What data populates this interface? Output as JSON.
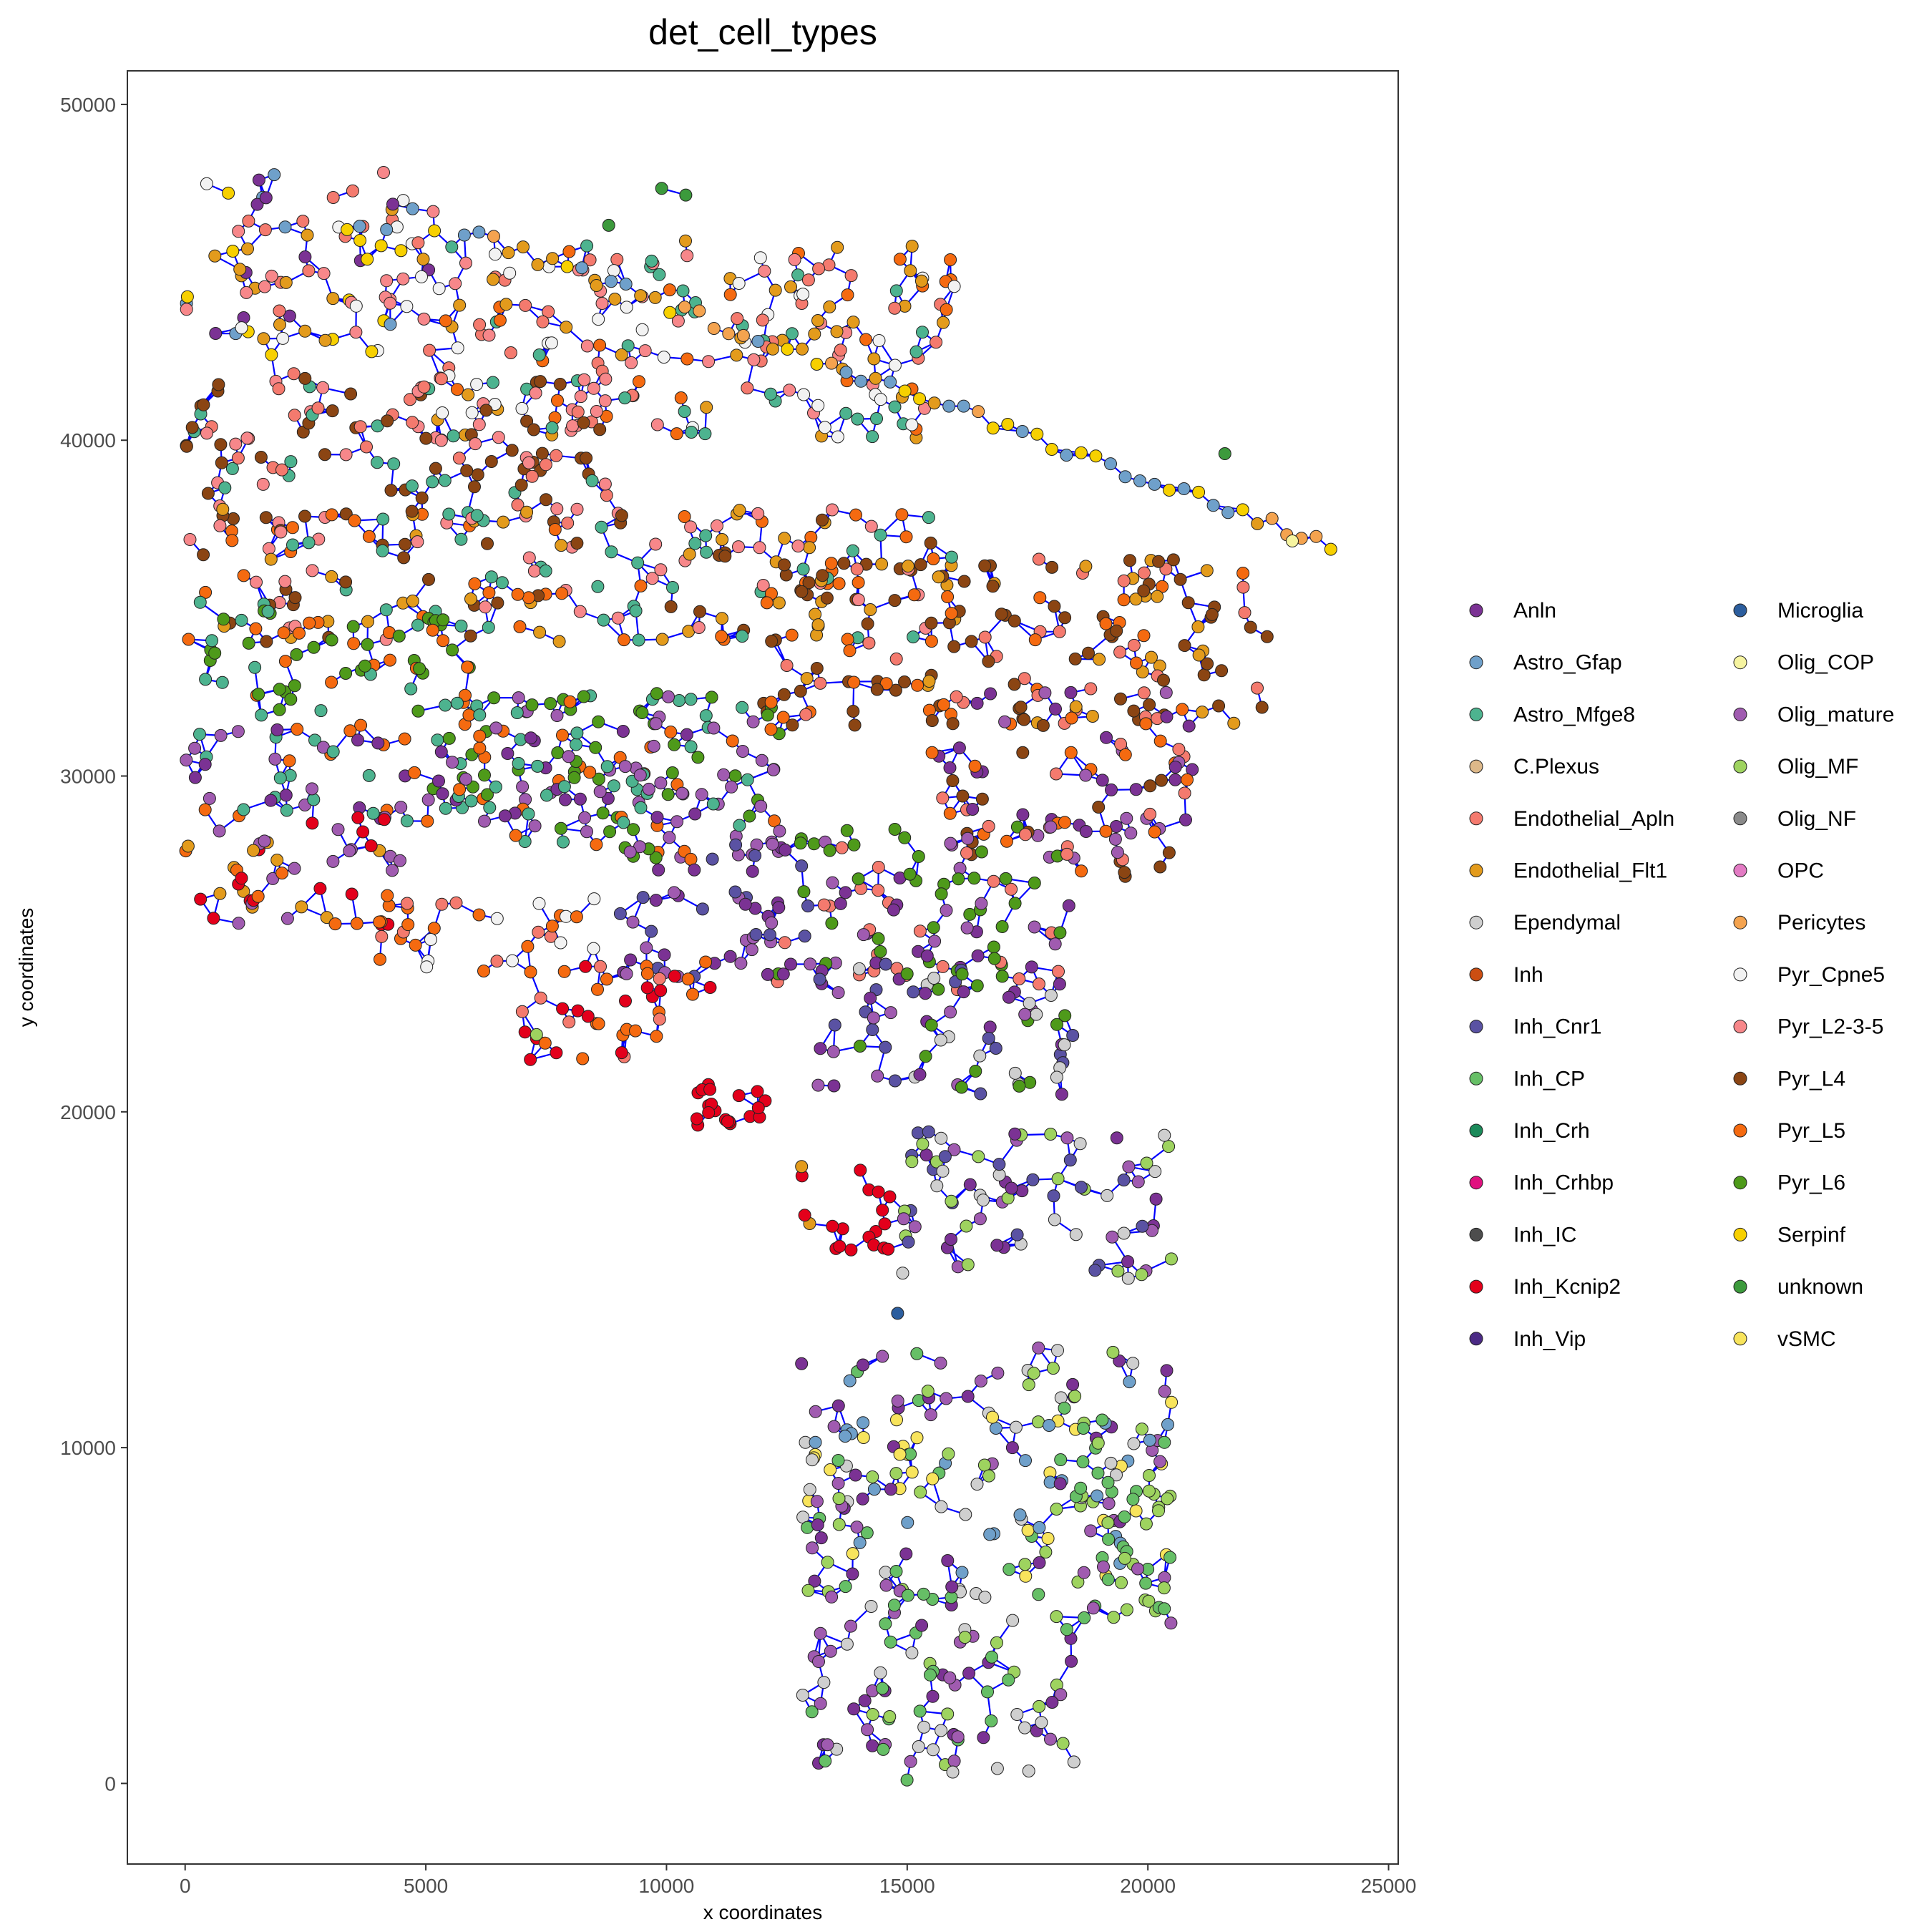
{
  "chart_data": {
    "type": "scatter",
    "title": "det_cell_types",
    "xlabel": "x coordinates",
    "ylabel": "y coordinates",
    "xlim": [
      -1200,
      25200
    ],
    "ylim": [
      -2400,
      51000
    ],
    "x_ticks": [
      0,
      5000,
      10000,
      15000,
      20000,
      25000
    ],
    "y_ticks": [
      0,
      10000,
      20000,
      30000,
      40000,
      50000
    ],
    "x_tick_labels": [
      "0",
      "5000",
      "10000",
      "15000",
      "20000",
      "25000"
    ],
    "y_tick_labels": [
      "0",
      "10000",
      "20000",
      "30000",
      "40000",
      "50000"
    ],
    "grid": false,
    "legend_position": "right",
    "network_edges": "blue",
    "legend": [
      {
        "label": "Anln",
        "color": "#7B3294"
      },
      {
        "label": "Astro_Gfap",
        "color": "#6FA0CA"
      },
      {
        "label": "Astro_Mfge8",
        "color": "#4DB38F"
      },
      {
        "label": "C.Plexus",
        "color": "#DDB889"
      },
      {
        "label": "Endothelial_Apln",
        "color": "#F47A6E"
      },
      {
        "label": "Endothelial_Flt1",
        "color": "#E39B1C"
      },
      {
        "label": "Ependymal",
        "color": "#CFCFCF"
      },
      {
        "label": "Inh",
        "color": "#CC4E12"
      },
      {
        "label": "Inh_Cnr1",
        "color": "#5A52A3"
      },
      {
        "label": "Inh_CP",
        "color": "#66BF66"
      },
      {
        "label": "Inh_Crh",
        "color": "#1B8A5A"
      },
      {
        "label": "Inh_Crhbp",
        "color": "#E0117F"
      },
      {
        "label": "Inh_IC",
        "color": "#4D4D4D"
      },
      {
        "label": "Inh_Kcnip2",
        "color": "#E3001B"
      },
      {
        "label": "Inh_Vip",
        "color": "#4B2A85"
      },
      {
        "label": "Microglia",
        "color": "#2C5E9E"
      },
      {
        "label": "Olig_COP",
        "color": "#F6F4A0"
      },
      {
        "label": "Olig_mature",
        "color": "#A05BB0"
      },
      {
        "label": "Olig_MF",
        "color": "#9ED35F"
      },
      {
        "label": "Olig_NF",
        "color": "#8A8A8A"
      },
      {
        "label": "OPC",
        "color": "#E37BC4"
      },
      {
        "label": "Pericytes",
        "color": "#F4A34F"
      },
      {
        "label": "Pyr_Cpne5",
        "color": "#F2F2F2"
      },
      {
        "label": "Pyr_L2-3-5",
        "color": "#F7878A"
      },
      {
        "label": "Pyr_L4",
        "color": "#8B4513"
      },
      {
        "label": "Pyr_L5",
        "color": "#F56A10"
      },
      {
        "label": "Pyr_L6",
        "color": "#4E9A1A"
      },
      {
        "label": "Serpinf",
        "color": "#F7D000"
      },
      {
        "label": "unknown",
        "color": "#3C9A3C"
      },
      {
        "label": "vSMC",
        "color": "#F8E45C"
      }
    ],
    "regions": [
      {
        "x": [
          0,
          5200
        ],
        "y": [
          42500,
          48000
        ],
        "colors": [
          "Pyr_Cpne5",
          "Astro_Gfap",
          "Endothelial_Apln",
          "Pyr_L2-3-5",
          "Serpinf",
          "Anln",
          "Endothelial_Flt1"
        ]
      },
      {
        "x": [
          5200,
          16000
        ],
        "y": [
          40000,
          46000
        ],
        "colors": [
          "Pyr_L2-3-5",
          "Pyr_Cpne5",
          "Endothelial_Apln",
          "Astro_Mfge8",
          "Pyr_L5",
          "Endothelial_Flt1"
        ]
      },
      {
        "x": [
          0,
          9000
        ],
        "y": [
          37500,
          42000
        ],
        "colors": [
          "Pyr_L4",
          "Pyr_L4",
          "Pyr_L2-3-5",
          "Endothelial_Apln",
          "Astro_Mfge8"
        ]
      },
      {
        "x": [
          0,
          16000
        ],
        "y": [
          34000,
          38000
        ],
        "colors": [
          "Pyr_L5",
          "Pyr_L2-3-5",
          "Astro_Mfge8",
          "Endothelial_Flt1",
          "Pyr_L4"
        ]
      },
      {
        "x": [
          12000,
          22500
        ],
        "y": [
          31500,
          36500
        ],
        "colors": [
          "Pyr_L4",
          "Pyr_L4",
          "Pyr_L4",
          "Endothelial_Apln",
          "Endothelial_Flt1",
          "Pyr_L5"
        ]
      },
      {
        "x": [
          0,
          6000
        ],
        "y": [
          31500,
          35000
        ],
        "colors": [
          "Pyr_L6",
          "Pyr_L6",
          "Astro_Mfge8",
          "Pyr_L5"
        ]
      },
      {
        "x": [
          5000,
          12500
        ],
        "y": [
          27500,
          32500
        ],
        "colors": [
          "Pyr_L6",
          "Pyr_L6",
          "Olig_mature",
          "Pyr_L5",
          "Astro_Mfge8"
        ]
      },
      {
        "x": [
          0,
          12000
        ],
        "y": [
          28500,
          31500
        ],
        "colors": [
          "Olig_mature",
          "Anln",
          "Pyr_L5",
          "Astro_Mfge8"
        ]
      },
      {
        "x": [
          15500,
          21000
        ],
        "y": [
          27000,
          32500
        ],
        "colors": [
          "Olig_mature",
          "Pyr_L4",
          "Endothelial_Apln",
          "Pyr_L5",
          "Anln"
        ]
      },
      {
        "x": [
          12000,
          18500
        ],
        "y": [
          23500,
          28500
        ],
        "colors": [
          "Pyr_L6",
          "Pyr_L6",
          "Anln",
          "Olig_mature",
          "Endothelial_Apln"
        ]
      },
      {
        "x": [
          9000,
          13000
        ],
        "y": [
          24000,
          28000
        ],
        "colors": [
          "Olig_mature",
          "Anln",
          "Inh_Cnr1"
        ]
      },
      {
        "x": [
          0,
          4500
        ],
        "y": [
          25500,
          29000
        ],
        "colors": [
          "Inh_Kcnip2",
          "Pyr_L5",
          "Endothelial_Flt1",
          "Olig_mature"
        ]
      },
      {
        "x": [
          4000,
          8500
        ],
        "y": [
          24000,
          26500
        ],
        "colors": [
          "Pyr_L5",
          "Pyr_L5",
          "Endothelial_Apln",
          "Pyr_Cpne5"
        ]
      },
      {
        "x": [
          7000,
          11000
        ],
        "y": [
          21500,
          24500
        ],
        "colors": [
          "Pyr_L5",
          "Inh_Kcnip2",
          "Endothelial_Apln"
        ]
      },
      {
        "x": [
          10600,
          12100
        ],
        "y": [
          19600,
          20900
        ],
        "colors": [
          "Inh_Kcnip2",
          "Inh_Kcnip2",
          "Inh_Kcnip2"
        ]
      },
      {
        "x": [
          13000,
          18500
        ],
        "y": [
          20500,
          24500
        ],
        "colors": [
          "Olig_mature",
          "Pyr_L6",
          "Inh_Cnr1",
          "Ependymal",
          "Anln"
        ]
      },
      {
        "x": [
          12800,
          14800
        ],
        "y": [
          15800,
          18500
        ],
        "colors": [
          "Inh_Kcnip2",
          "Endothelial_Flt1",
          "Inh_Kcnip2"
        ]
      },
      {
        "x": [
          14800,
          20500
        ],
        "y": [
          15000,
          19500
        ],
        "colors": [
          "Olig_mature",
          "Anln",
          "Inh_Cnr1",
          "Ependymal",
          "Olig_MF"
        ]
      },
      {
        "x": [
          12800,
          20500
        ],
        "y": [
          6000,
          13000
        ],
        "colors": [
          "Olig_mature",
          "Astro_Gfap",
          "Ependymal",
          "Inh_CP",
          "Anln",
          "Olig_MF",
          "vSMC"
        ]
      },
      {
        "x": [
          18500,
          20500
        ],
        "y": [
          6500,
          11000
        ],
        "colors": [
          "Inh_CP",
          "Inh_CP",
          "Olig_MF"
        ]
      },
      {
        "x": [
          12800,
          18500
        ],
        "y": [
          0,
          6000
        ],
        "colors": [
          "Olig_mature",
          "Ependymal",
          "Olig_MF",
          "Anln",
          "Inh_CP"
        ]
      },
      {
        "x": [
          18500,
          20500
        ],
        "y": [
          4500,
          6500
        ],
        "colors": [
          "Inh_CP",
          "Olig_MF",
          "Olig_mature"
        ]
      }
    ],
    "arc_points": [
      {
        "x": [
          5800,
          23800
        ],
        "y_top": [
          46200,
          36900
        ],
        "colors": [
          "Astro_Gfap",
          "Pericytes",
          "Endothelial_Flt1",
          "Serpinf"
        ]
      }
    ],
    "isolated_points": [
      {
        "x": 9900,
        "y": 47500,
        "color": "unknown"
      },
      {
        "x": 10400,
        "y": 47300,
        "color": "unknown"
      },
      {
        "x": 8800,
        "y": 46400,
        "color": "unknown"
      },
      {
        "x": 21600,
        "y": 39600,
        "color": "unknown"
      },
      {
        "x": 7300,
        "y": 22300,
        "color": "Olig_MF"
      },
      {
        "x": 15200,
        "y": 12800,
        "color": "Inh_CP"
      },
      {
        "x": 14800,
        "y": 14000,
        "color": "Microglia"
      },
      {
        "x": 23000,
        "y": 37000,
        "color": "Olig_COP"
      }
    ]
  }
}
